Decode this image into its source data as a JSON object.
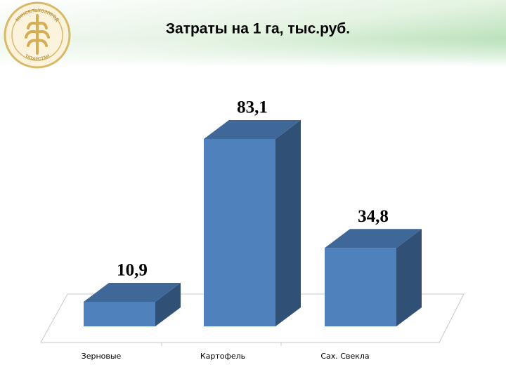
{
  "chart_data": {
    "type": "bar3d",
    "title": "Затраты на 1 га, тыс.руб.",
    "categories": [
      "Зерновые",
      "Картофель",
      "Сах. Свекла"
    ],
    "values": [
      10.9,
      83.1,
      34.8
    ],
    "value_labels": [
      "10,9",
      "83,1",
      "34,8"
    ],
    "color": "#4f81bd"
  },
  "logo": {
    "top": "МИНСЕЛЬХОЗПРОД",
    "bottom": "ТАТАРСТАН"
  }
}
